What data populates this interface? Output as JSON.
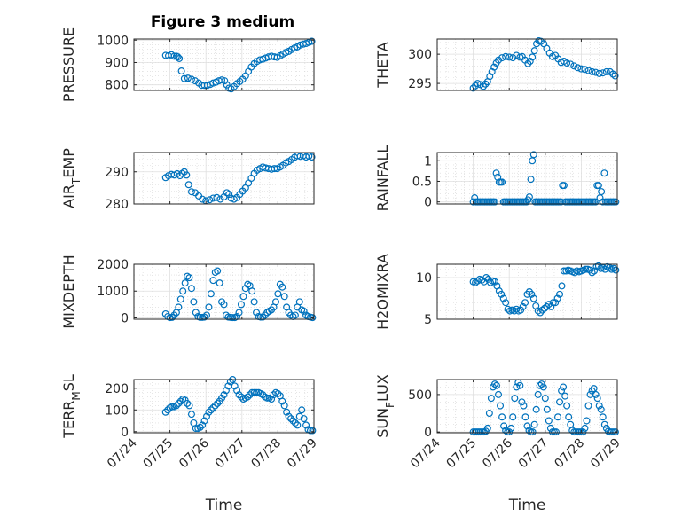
{
  "figure": {
    "title": "Figure 3 medium",
    "marker_color": "#0072BD"
  },
  "chart_data": [
    {
      "type": "scatter",
      "ylabel": "PRESSURE",
      "xlabel": "",
      "ylim": [
        775,
        1005
      ],
      "yticks": [
        800,
        900,
        1000
      ],
      "yticklabels": [
        "800",
        "900",
        "1000"
      ],
      "xlim": [
        0,
        5
      ],
      "xticks": [
        0,
        1,
        2,
        3,
        4,
        5
      ],
      "xticklabels": [
        "07/24",
        "07/25",
        "07/26",
        "07/27",
        "07/28",
        "07/29"
      ],
      "x": [
        0.88,
        0.96,
        1.04,
        1.12,
        1.18,
        1.22,
        1.26,
        1.32,
        1.4,
        1.5,
        1.6,
        1.7,
        1.8,
        1.88,
        1.96,
        2.04,
        2.12,
        2.2,
        2.28,
        2.36,
        2.44,
        2.52,
        2.58,
        2.64,
        2.7,
        2.78,
        2.86,
        2.94,
        3.02,
        3.1,
        3.18,
        3.26,
        3.34,
        3.42,
        3.5,
        3.58,
        3.66,
        3.74,
        3.82,
        3.9,
        3.98,
        4.06,
        4.14,
        4.22,
        4.3,
        4.38,
        4.46,
        4.54,
        4.62,
        4.7,
        4.78,
        4.86,
        4.94
      ],
      "y": [
        932,
        930,
        935,
        928,
        928,
        925,
        918,
        862,
        828,
        830,
        825,
        818,
        808,
        798,
        798,
        798,
        802,
        808,
        812,
        818,
        822,
        818,
        800,
        785,
        782,
        792,
        805,
        815,
        825,
        840,
        860,
        880,
        895,
        905,
        912,
        915,
        920,
        925,
        928,
        925,
        923,
        930,
        938,
        945,
        950,
        958,
        965,
        970,
        978,
        982,
        985,
        990,
        995
      ]
    },
    {
      "type": "scatter",
      "ylabel": "THETA",
      "xlabel": "",
      "ylim": [
        293.8,
        302.6
      ],
      "yticks": [
        295,
        300
      ],
      "yticklabels": [
        "295",
        "300"
      ],
      "xlim": [
        0,
        5
      ],
      "xticks": [
        0,
        1,
        2,
        3,
        4,
        5
      ],
      "xticklabels": [
        "07/24",
        "07/25",
        "07/26",
        "07/27",
        "07/28",
        "07/29"
      ],
      "x": [
        1.0,
        1.06,
        1.12,
        1.2,
        1.28,
        1.34,
        1.4,
        1.46,
        1.52,
        1.58,
        1.64,
        1.7,
        1.8,
        1.9,
        2.0,
        2.1,
        2.2,
        2.3,
        2.36,
        2.44,
        2.52,
        2.58,
        2.64,
        2.7,
        2.76,
        2.82,
        2.88,
        2.96,
        3.04,
        3.12,
        3.2,
        3.28,
        3.36,
        3.44,
        3.52,
        3.6,
        3.7,
        3.8,
        3.9,
        4.0,
        4.1,
        4.2,
        4.3,
        4.4,
        4.5,
        4.6,
        4.7,
        4.8,
        4.88,
        4.94
      ],
      "y": [
        294.2,
        294.6,
        295.0,
        294.8,
        294.5,
        294.9,
        295.3,
        296.2,
        297.0,
        297.8,
        298.5,
        299.0,
        299.4,
        299.6,
        299.5,
        299.4,
        299.8,
        299.5,
        299.6,
        299.0,
        298.4,
        298.8,
        299.5,
        300.6,
        301.8,
        302.3,
        302.2,
        301.8,
        301.0,
        300.2,
        299.6,
        299.8,
        299.2,
        298.6,
        298.8,
        298.5,
        298.3,
        298.0,
        297.7,
        297.5,
        297.4,
        297.2,
        297.0,
        296.9,
        296.7,
        296.8,
        297.0,
        297.0,
        296.6,
        296.3
      ]
    },
    {
      "type": "scatter",
      "ylabel": "AIR_T EMP",
      "xlabel": "",
      "ylim": [
        280,
        296
      ],
      "yticks": [
        280,
        290
      ],
      "yticklabels": [
        "280",
        "290"
      ],
      "xlim": [
        0,
        5
      ],
      "xticks": [
        0,
        1,
        2,
        3,
        4,
        5
      ],
      "xticklabels": [
        "07/24",
        "07/25",
        "07/26",
        "07/27",
        "07/28",
        "07/29"
      ],
      "x": [
        0.88,
        0.96,
        1.04,
        1.12,
        1.2,
        1.28,
        1.34,
        1.4,
        1.46,
        1.52,
        1.6,
        1.7,
        1.8,
        1.9,
        2.0,
        2.1,
        2.2,
        2.3,
        2.4,
        2.5,
        2.58,
        2.64,
        2.7,
        2.78,
        2.86,
        2.94,
        3.02,
        3.1,
        3.18,
        3.26,
        3.34,
        3.42,
        3.5,
        3.58,
        3.66,
        3.74,
        3.82,
        3.9,
        3.98,
        4.06,
        4.14,
        4.22,
        4.3,
        4.38,
        4.46,
        4.54,
        4.62,
        4.7,
        4.78,
        4.86,
        4.94
      ],
      "y": [
        288.2,
        288.8,
        289.2,
        289.0,
        289.4,
        288.8,
        289.5,
        290.0,
        289.0,
        286.0,
        283.8,
        283.5,
        282.5,
        281.5,
        281.0,
        281.3,
        281.8,
        282.0,
        281.5,
        282.2,
        283.5,
        283.0,
        281.8,
        281.5,
        282.0,
        283.0,
        284.0,
        285.0,
        286.5,
        288.0,
        289.5,
        290.5,
        291.0,
        291.5,
        291.2,
        291.0,
        290.8,
        291.0,
        291.0,
        291.5,
        292.0,
        292.8,
        293.2,
        293.8,
        294.5,
        295.0,
        294.8,
        295.0,
        294.6,
        294.9,
        294.6
      ]
    },
    {
      "type": "scatter",
      "ylabel": "RAINFALL",
      "xlabel": "",
      "ylim": [
        -0.05,
        1.2
      ],
      "yticks": [
        0,
        0.5,
        1
      ],
      "yticklabels": [
        "0",
        "0.5",
        "1"
      ],
      "xlim": [
        0,
        5
      ],
      "xticks": [
        0,
        1,
        2,
        3,
        4,
        5
      ],
      "xticklabels": [
        "07/24",
        "07/25",
        "07/26",
        "07/27",
        "07/28",
        "07/29"
      ],
      "x": [
        1.0,
        1.04,
        1.08,
        1.12,
        1.16,
        1.2,
        1.24,
        1.28,
        1.32,
        1.36,
        1.4,
        1.44,
        1.48,
        1.52,
        1.56,
        1.6,
        1.64,
        1.68,
        1.72,
        1.76,
        1.8,
        1.84,
        1.88,
        1.92,
        1.96,
        2.0,
        2.04,
        2.08,
        2.12,
        2.16,
        2.2,
        2.24,
        2.28,
        2.32,
        2.36,
        2.4,
        2.44,
        2.48,
        2.52,
        2.56,
        2.6,
        2.64,
        2.68,
        2.72,
        2.76,
        2.8,
        2.84,
        2.88,
        2.92,
        2.96,
        3.0,
        3.04,
        3.08,
        3.12,
        3.16,
        3.2,
        3.24,
        3.28,
        3.32,
        3.36,
        3.4,
        3.44,
        3.48,
        3.52,
        3.56,
        3.6,
        3.64,
        3.68,
        3.72,
        3.76,
        3.8,
        3.84,
        3.88,
        3.92,
        3.96,
        4.0,
        4.04,
        4.08,
        4.12,
        4.16,
        4.2,
        4.24,
        4.28,
        4.32,
        4.36,
        4.4,
        4.44,
        4.48,
        4.52,
        4.56,
        4.6,
        4.64,
        4.68,
        4.72,
        4.76,
        4.8,
        4.84,
        4.88,
        4.92,
        4.96
      ],
      "y": [
        0,
        0.1,
        0,
        0,
        0,
        0,
        0,
        0,
        0,
        0,
        0,
        0,
        0,
        0,
        0,
        0,
        0.7,
        0.6,
        0.48,
        0.48,
        0.48,
        0,
        0,
        0,
        0,
        0,
        0,
        0,
        0,
        0,
        0,
        0,
        0,
        0,
        0,
        0,
        0,
        0,
        0.05,
        0.12,
        0.55,
        1.0,
        1.15,
        0,
        0,
        0,
        0,
        0,
        0,
        0,
        0,
        0,
        0,
        0,
        0,
        0,
        0,
        0,
        0,
        0,
        0,
        0,
        0.4,
        0.4,
        0,
        0,
        0,
        0,
        0,
        0,
        0,
        0,
        0,
        0,
        0,
        0,
        0,
        0,
        0,
        0,
        0,
        0,
        0,
        0,
        0,
        0,
        0.4,
        0.4,
        0.1,
        0.25,
        0,
        0.7,
        0,
        0,
        0,
        0,
        0,
        0,
        0,
        0
      ]
    },
    {
      "type": "scatter",
      "ylabel": "MIXDEPTH",
      "xlabel": "",
      "ylim": [
        -50,
        2000
      ],
      "yticks": [
        0,
        1000,
        2000
      ],
      "yticklabels": [
        "0",
        "1000",
        "2000"
      ],
      "xlim": [
        0,
        5
      ],
      "xticks": [
        0,
        1,
        2,
        3,
        4,
        5
      ],
      "xticklabels": [
        "07/24",
        "07/25",
        "07/26",
        "07/27",
        "07/28",
        "07/29"
      ],
      "x": [
        0.88,
        0.94,
        1.0,
        1.06,
        1.12,
        1.18,
        1.24,
        1.3,
        1.36,
        1.42,
        1.48,
        1.54,
        1.6,
        1.66,
        1.72,
        1.78,
        1.84,
        1.9,
        1.96,
        2.02,
        2.08,
        2.14,
        2.2,
        2.26,
        2.32,
        2.38,
        2.44,
        2.5,
        2.56,
        2.62,
        2.68,
        2.74,
        2.8,
        2.86,
        2.92,
        2.98,
        3.04,
        3.1,
        3.16,
        3.22,
        3.28,
        3.34,
        3.4,
        3.46,
        3.52,
        3.58,
        3.64,
        3.7,
        3.76,
        3.82,
        3.88,
        3.94,
        4.0,
        4.06,
        4.12,
        4.18,
        4.24,
        4.3,
        4.36,
        4.42,
        4.48,
        4.54,
        4.6,
        4.66,
        4.72,
        4.78,
        4.84,
        4.9,
        4.96
      ],
      "y": [
        150,
        50,
        10,
        20,
        100,
        200,
        400,
        700,
        1000,
        1300,
        1550,
        1500,
        1100,
        600,
        200,
        50,
        20,
        20,
        30,
        100,
        400,
        900,
        1400,
        1700,
        1750,
        1300,
        600,
        500,
        100,
        30,
        20,
        10,
        10,
        50,
        200,
        500,
        800,
        1100,
        1250,
        1200,
        1000,
        600,
        200,
        50,
        30,
        30,
        100,
        200,
        250,
        300,
        400,
        600,
        900,
        1250,
        1150,
        800,
        400,
        200,
        100,
        50,
        100,
        400,
        600,
        300,
        250,
        100,
        50,
        30,
        10
      ]
    },
    {
      "type": "scatter",
      "ylabel": "H2OMIXRA",
      "xlabel": "",
      "ylim": [
        5,
        11.6
      ],
      "yticks": [
        5,
        10
      ],
      "yticklabels": [
        "5",
        "10"
      ],
      "xlim": [
        0,
        5
      ],
      "xticks": [
        0,
        1,
        2,
        3,
        4,
        5
      ],
      "xticklabels": [
        "07/24",
        "07/25",
        "07/26",
        "07/27",
        "07/28",
        "07/29"
      ],
      "x": [
        1.0,
        1.06,
        1.12,
        1.18,
        1.24,
        1.3,
        1.36,
        1.42,
        1.48,
        1.54,
        1.6,
        1.66,
        1.72,
        1.78,
        1.84,
        1.9,
        1.96,
        2.02,
        2.08,
        2.14,
        2.2,
        2.26,
        2.32,
        2.38,
        2.44,
        2.5,
        2.56,
        2.62,
        2.68,
        2.74,
        2.8,
        2.86,
        2.92,
        2.98,
        3.04,
        3.1,
        3.16,
        3.22,
        3.28,
        3.34,
        3.4,
        3.46,
        3.52,
        3.58,
        3.64,
        3.7,
        3.76,
        3.82,
        3.88,
        3.94,
        4.0,
        4.06,
        4.12,
        4.18,
        4.24,
        4.3,
        4.36,
        4.42,
        4.48,
        4.54,
        4.6,
        4.66,
        4.72,
        4.78,
        4.84,
        4.9,
        4.96
      ],
      "y": [
        9.5,
        9.4,
        9.6,
        9.8,
        9.7,
        9.5,
        10.0,
        9.8,
        9.4,
        9.6,
        9.5,
        9.0,
        8.4,
        8.0,
        7.5,
        7.0,
        6.2,
        6.0,
        6.1,
        6.0,
        6.2,
        6.0,
        6.1,
        6.5,
        7.0,
        8.0,
        8.3,
        8.0,
        7.5,
        6.6,
        6.0,
        5.8,
        6.1,
        6.3,
        6.5,
        6.8,
        6.5,
        7.0,
        7.0,
        7.5,
        8.0,
        9.0,
        10.8,
        10.8,
        10.9,
        10.8,
        10.7,
        10.6,
        10.8,
        10.7,
        10.8,
        10.9,
        11.0,
        11.0,
        10.9,
        10.6,
        10.8,
        11.3,
        11.4,
        11.1,
        11.2,
        11.0,
        11.3,
        11.2,
        11.0,
        11.1,
        10.9
      ]
    },
    {
      "type": "scatter",
      "ylabel": "TERR_M SL",
      "xlabel": "Time",
      "ylim": [
        -5,
        240
      ],
      "yticks": [
        0,
        100,
        200
      ],
      "yticklabels": [
        "0",
        "100",
        "200"
      ],
      "xlim": [
        0,
        5
      ],
      "xticks": [
        0,
        1,
        2,
        3,
        4,
        5
      ],
      "xticklabels": [
        "07/24",
        "07/25",
        "07/26",
        "07/27",
        "07/28",
        "07/29"
      ],
      "x": [
        0.88,
        0.94,
        1.0,
        1.06,
        1.12,
        1.18,
        1.24,
        1.3,
        1.36,
        1.42,
        1.48,
        1.54,
        1.6,
        1.66,
        1.72,
        1.78,
        1.84,
        1.9,
        1.96,
        2.02,
        2.08,
        2.14,
        2.2,
        2.26,
        2.32,
        2.38,
        2.44,
        2.5,
        2.56,
        2.62,
        2.68,
        2.74,
        2.8,
        2.86,
        2.92,
        2.98,
        3.04,
        3.1,
        3.16,
        3.22,
        3.28,
        3.34,
        3.4,
        3.46,
        3.52,
        3.58,
        3.64,
        3.7,
        3.76,
        3.82,
        3.88,
        3.94,
        4.0,
        4.06,
        4.12,
        4.18,
        4.24,
        4.3,
        4.36,
        4.42,
        4.48,
        4.54,
        4.6,
        4.66,
        4.72,
        4.78,
        4.84,
        4.9,
        4.96
      ],
      "y": [
        90,
        100,
        110,
        115,
        115,
        120,
        130,
        140,
        150,
        145,
        130,
        120,
        80,
        40,
        15,
        15,
        20,
        30,
        50,
        70,
        90,
        100,
        110,
        120,
        130,
        140,
        155,
        170,
        190,
        210,
        230,
        240,
        210,
        190,
        170,
        160,
        150,
        155,
        160,
        170,
        180,
        180,
        180,
        180,
        175,
        170,
        160,
        155,
        155,
        150,
        170,
        180,
        175,
        165,
        140,
        120,
        90,
        70,
        60,
        50,
        40,
        30,
        70,
        100,
        60,
        30,
        10,
        5,
        5
      ]
    },
    {
      "type": "scatter",
      "ylabel": "SUN_F LUX",
      "xlabel": "Time",
      "ylim": [
        -10,
        700
      ],
      "yticks": [
        0,
        500
      ],
      "yticklabels": [
        "0",
        "500"
      ],
      "xlim": [
        0,
        5
      ],
      "xticks": [
        0,
        1,
        2,
        3,
        4,
        5
      ],
      "xticklabels": [
        "07/24",
        "07/25",
        "07/26",
        "07/27",
        "07/28",
        "07/29"
      ],
      "x": [
        1.0,
        1.05,
        1.1,
        1.15,
        1.2,
        1.25,
        1.3,
        1.35,
        1.4,
        1.45,
        1.5,
        1.55,
        1.6,
        1.65,
        1.7,
        1.75,
        1.8,
        1.85,
        1.9,
        1.95,
        2.0,
        2.05,
        2.1,
        2.15,
        2.2,
        2.25,
        2.3,
        2.35,
        2.4,
        2.45,
        2.5,
        2.55,
        2.6,
        2.65,
        2.7,
        2.75,
        2.8,
        2.85,
        2.9,
        2.95,
        3.0,
        3.05,
        3.1,
        3.15,
        3.2,
        3.25,
        3.3,
        3.35,
        3.4,
        3.45,
        3.5,
        3.55,
        3.6,
        3.65,
        3.7,
        3.75,
        3.8,
        3.85,
        3.9,
        3.95,
        4.0,
        4.05,
        4.1,
        4.15,
        4.2,
        4.25,
        4.3,
        4.35,
        4.4,
        4.45,
        4.5,
        4.55,
        4.6,
        4.65,
        4.7,
        4.75,
        4.8,
        4.85,
        4.9,
        4.95
      ],
      "y": [
        0,
        0,
        0,
        0,
        0,
        0,
        0,
        10,
        50,
        250,
        450,
        600,
        640,
        620,
        500,
        350,
        200,
        80,
        20,
        0,
        0,
        50,
        200,
        450,
        600,
        660,
        620,
        400,
        350,
        200,
        80,
        20,
        0,
        0,
        100,
        300,
        500,
        620,
        640,
        600,
        450,
        300,
        150,
        50,
        0,
        0,
        0,
        200,
        400,
        550,
        600,
        480,
        350,
        200,
        100,
        20,
        0,
        0,
        0,
        0,
        0,
        0,
        50,
        150,
        350,
        500,
        550,
        580,
        500,
        450,
        350,
        300,
        200,
        100,
        50,
        10,
        0,
        0,
        0,
        0
      ]
    }
  ]
}
